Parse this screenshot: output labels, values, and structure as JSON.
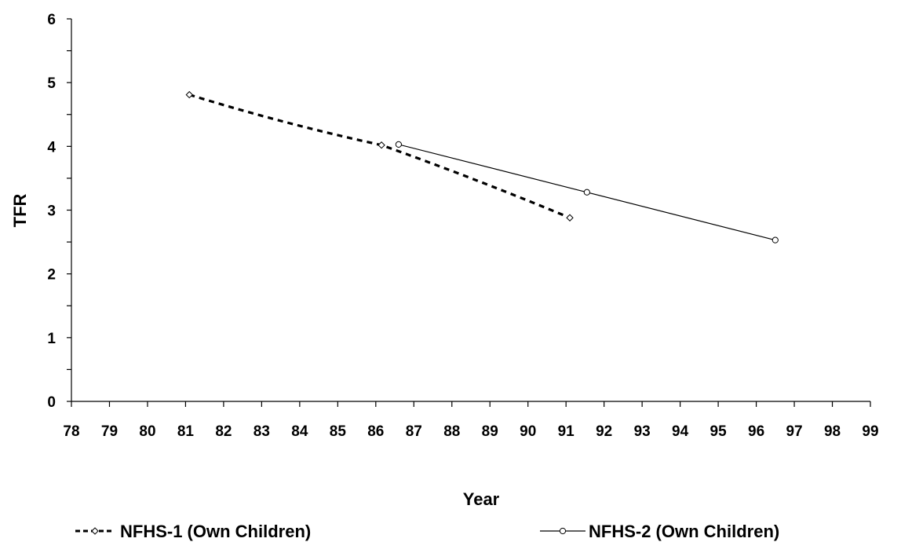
{
  "chart_data": {
    "type": "line",
    "title": "",
    "xlabel": "Year",
    "ylabel": "TFR",
    "xlim": [
      78,
      99
    ],
    "ylim": [
      0,
      6
    ],
    "x_ticks": [
      "78",
      "79",
      "80",
      "81",
      "82",
      "83",
      "84",
      "85",
      "86",
      "87",
      "88",
      "89",
      "90",
      "91",
      "92",
      "93",
      "94",
      "95",
      "96",
      "97",
      "98",
      "99"
    ],
    "y_ticks": [
      "0",
      "1",
      "2",
      "3",
      "4",
      "5",
      "6"
    ],
    "grid": false,
    "legend_position": "bottom",
    "series": [
      {
        "name": "NFHS-1 (Own Children)",
        "style": "dashed",
        "marker": "diamond",
        "color": "#000000",
        "x": [
          81.1,
          86.15,
          91.1
        ],
        "y": [
          4.81,
          4.02,
          2.88
        ],
        "curve_through": [
          [
            83.6,
            4.35
          ],
          [
            88.6,
            3.5
          ]
        ]
      },
      {
        "name": "NFHS-2 (Own Children)",
        "style": "solid",
        "marker": "circle",
        "color": "#000000",
        "x": [
          86.6,
          91.55,
          96.5
        ],
        "y": [
          4.03,
          3.28,
          2.53
        ]
      }
    ]
  }
}
